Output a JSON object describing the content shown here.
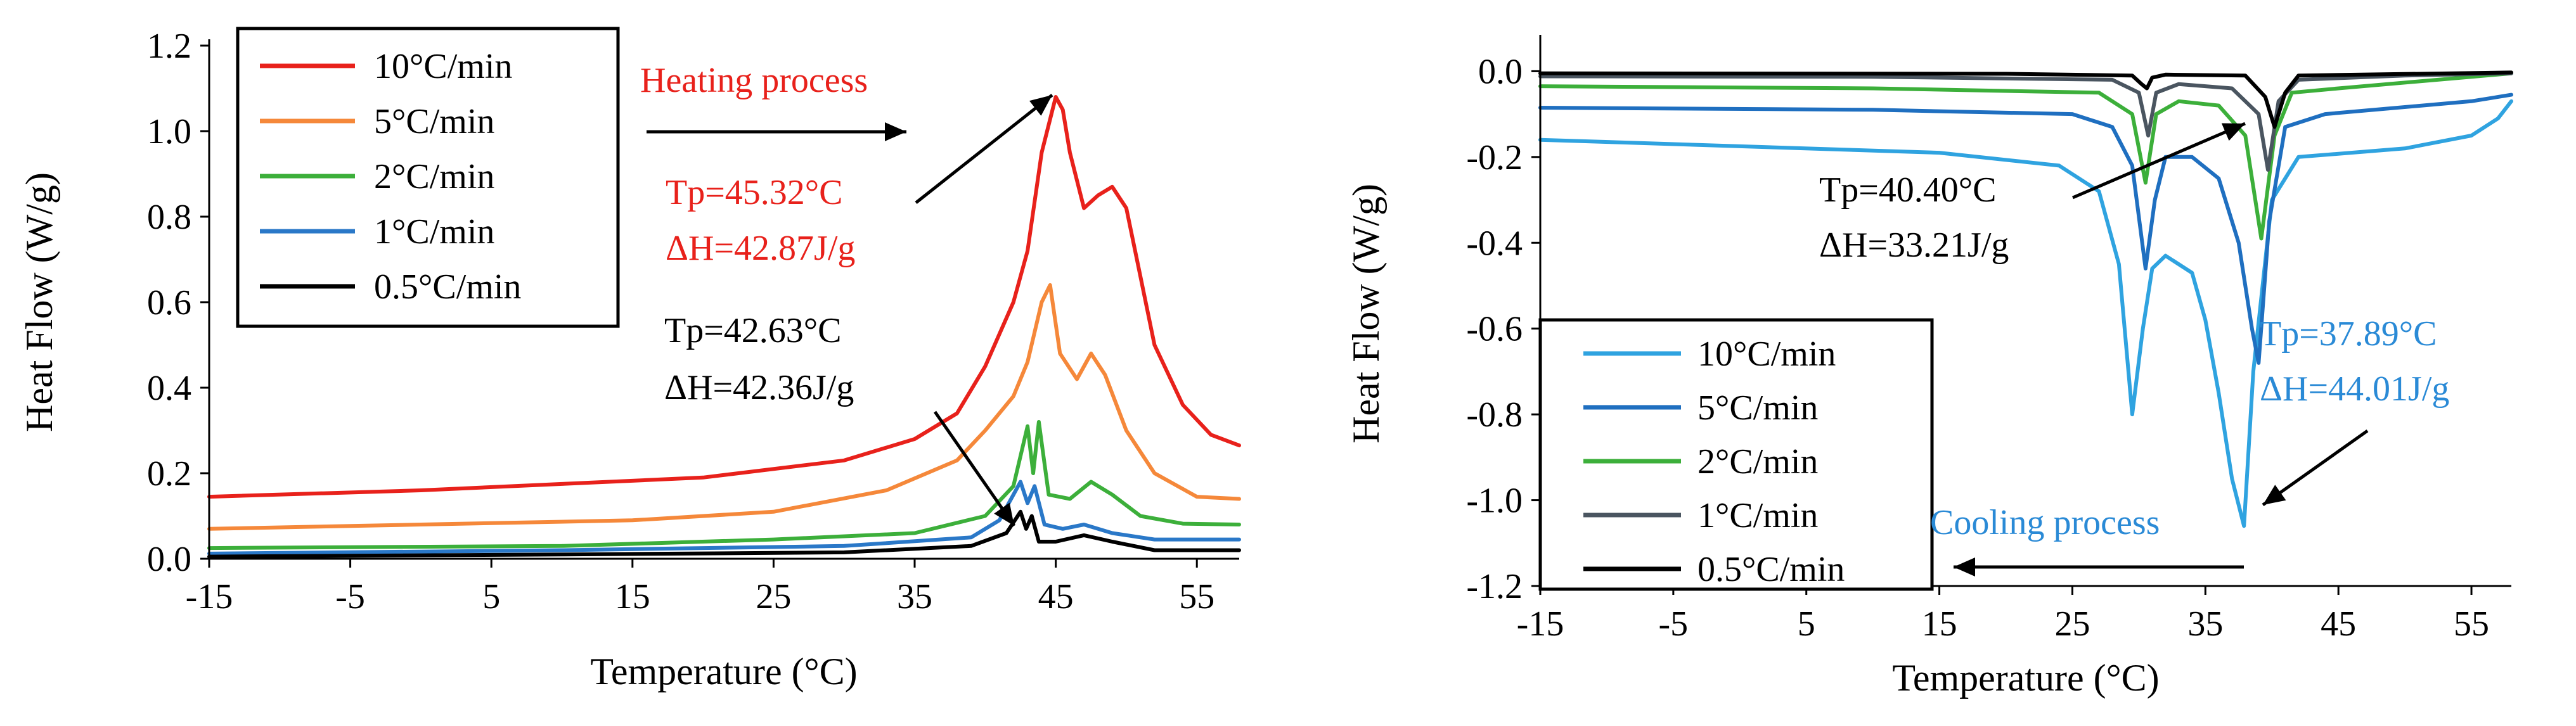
{
  "chart_data": [
    {
      "type": "line",
      "title": "",
      "xlabel": "Temperature (°C)",
      "ylabel": "Heat Flow (W/g)",
      "xlim": [
        -15,
        58
      ],
      "ylim": [
        0,
        1.2
      ],
      "xticks": [
        -15,
        -5,
        5,
        15,
        25,
        35,
        45,
        55
      ],
      "yticks": [
        0.0,
        0.2,
        0.4,
        0.6,
        0.8,
        1.0,
        1.2
      ],
      "ytick_labels": [
        "0.0",
        "0.2",
        "0.4",
        "0.6",
        "0.8",
        "1.0",
        "1.2"
      ],
      "legend": "top-left",
      "series": [
        {
          "name": "10°C/min",
          "color": "#e8211b",
          "points": [
            [
              -15,
              0.145
            ],
            [
              0,
              0.16
            ],
            [
              10,
              0.175
            ],
            [
              20,
              0.19
            ],
            [
              30,
              0.23
            ],
            [
              35,
              0.28
            ],
            [
              38,
              0.34
            ],
            [
              40,
              0.45
            ],
            [
              42,
              0.6
            ],
            [
              43,
              0.72
            ],
            [
              44,
              0.95
            ],
            [
              45,
              1.08
            ],
            [
              45.5,
              1.05
            ],
            [
              46,
              0.95
            ],
            [
              47,
              0.82
            ],
            [
              48,
              0.85
            ],
            [
              49,
              0.87
            ],
            [
              50,
              0.82
            ],
            [
              51,
              0.66
            ],
            [
              52,
              0.5
            ],
            [
              54,
              0.36
            ],
            [
              56,
              0.29
            ],
            [
              58,
              0.265
            ]
          ]
        },
        {
          "name": "5°C/min",
          "color": "#f5883a",
          "points": [
            [
              -15,
              0.07
            ],
            [
              0,
              0.08
            ],
            [
              15,
              0.09
            ],
            [
              25,
              0.11
            ],
            [
              33,
              0.16
            ],
            [
              38,
              0.23
            ],
            [
              40,
              0.3
            ],
            [
              42,
              0.38
            ],
            [
              43,
              0.46
            ],
            [
              44,
              0.6
            ],
            [
              44.6,
              0.64
            ],
            [
              45.3,
              0.48
            ],
            [
              46.5,
              0.42
            ],
            [
              47.5,
              0.48
            ],
            [
              48.5,
              0.43
            ],
            [
              50,
              0.3
            ],
            [
              52,
              0.2
            ],
            [
              55,
              0.145
            ],
            [
              58,
              0.14
            ]
          ]
        },
        {
          "name": "2°C/min",
          "color": "#3caf3a",
          "points": [
            [
              -15,
              0.025
            ],
            [
              10,
              0.03
            ],
            [
              25,
              0.045
            ],
            [
              35,
              0.06
            ],
            [
              40,
              0.1
            ],
            [
              42,
              0.17
            ],
            [
              43,
              0.31
            ],
            [
              43.4,
              0.2
            ],
            [
              43.8,
              0.32
            ],
            [
              44.5,
              0.15
            ],
            [
              46,
              0.14
            ],
            [
              47.5,
              0.18
            ],
            [
              49,
              0.15
            ],
            [
              51,
              0.1
            ],
            [
              54,
              0.082
            ],
            [
              58,
              0.08
            ]
          ]
        },
        {
          "name": "1°C/min",
          "color": "#2a78c8",
          "points": [
            [
              -15,
              0.012
            ],
            [
              10,
              0.02
            ],
            [
              30,
              0.03
            ],
            [
              39,
              0.05
            ],
            [
              41,
              0.09
            ],
            [
              42.5,
              0.18
            ],
            [
              43,
              0.13
            ],
            [
              43.5,
              0.17
            ],
            [
              44.2,
              0.08
            ],
            [
              45.5,
              0.07
            ],
            [
              47,
              0.08
            ],
            [
              49,
              0.06
            ],
            [
              52,
              0.045
            ],
            [
              58,
              0.045
            ]
          ]
        },
        {
          "name": "0.5°C/min",
          "color": "#000000",
          "points": [
            [
              -15,
              0.005
            ],
            [
              10,
              0.01
            ],
            [
              30,
              0.015
            ],
            [
              39,
              0.03
            ],
            [
              41.5,
              0.06
            ],
            [
              42.5,
              0.11
            ],
            [
              42.9,
              0.07
            ],
            [
              43.3,
              0.1
            ],
            [
              43.8,
              0.04
            ],
            [
              45,
              0.04
            ],
            [
              47,
              0.055
            ],
            [
              49,
              0.04
            ],
            [
              52,
              0.02
            ],
            [
              58,
              0.02
            ]
          ]
        }
      ],
      "annotations": [
        {
          "text": "Heating process",
          "color": "#e8211b"
        },
        {
          "text": "Tp=45.32°C",
          "color": "#e8211b"
        },
        {
          "text": "ΔH=42.87J/g",
          "color": "#e8211b"
        },
        {
          "text": "Tp=42.63°C",
          "color": "#000000"
        },
        {
          "text": "ΔH=42.36J/g",
          "color": "#000000"
        }
      ]
    },
    {
      "type": "line",
      "title": "",
      "xlabel": "Temperature (°C)",
      "ylabel": "Heat Flow (W/g)",
      "xlim": [
        -15,
        58
      ],
      "ylim": [
        -1.2,
        0.07
      ],
      "xticks": [
        -15,
        -5,
        5,
        15,
        25,
        35,
        45,
        55
      ],
      "yticks": [
        0.0,
        -0.2,
        -0.4,
        -0.6,
        -0.8,
        -1.0,
        -1.2
      ],
      "ytick_labels": [
        "0.0",
        "-0.2",
        "-0.4",
        "-0.6",
        "-0.8",
        "-1.0",
        "-1.2"
      ],
      "legend": "bottom-left",
      "series": [
        {
          "name": "10°C/min",
          "color": "#2fa3e0",
          "points": [
            [
              -15,
              -0.16
            ],
            [
              0,
              -0.175
            ],
            [
              15,
              -0.19
            ],
            [
              24,
              -0.22
            ],
            [
              27,
              -0.28
            ],
            [
              28.5,
              -0.45
            ],
            [
              29.5,
              -0.8
            ],
            [
              30.3,
              -0.6
            ],
            [
              31,
              -0.46
            ],
            [
              32,
              -0.43
            ],
            [
              34,
              -0.47
            ],
            [
              35,
              -0.58
            ],
            [
              36,
              -0.75
            ],
            [
              37,
              -0.95
            ],
            [
              37.9,
              -1.06
            ],
            [
              38.6,
              -0.7
            ],
            [
              40,
              -0.3
            ],
            [
              42,
              -0.2
            ],
            [
              50,
              -0.18
            ],
            [
              55,
              -0.15
            ],
            [
              57,
              -0.11
            ],
            [
              58,
              -0.07
            ]
          ]
        },
        {
          "name": "5°C/min",
          "color": "#1f6fc0",
          "points": [
            [
              -15,
              -0.085
            ],
            [
              10,
              -0.09
            ],
            [
              25,
              -0.1
            ],
            [
              28,
              -0.13
            ],
            [
              29.5,
              -0.22
            ],
            [
              30.5,
              -0.46
            ],
            [
              31.2,
              -0.3
            ],
            [
              32,
              -0.2
            ],
            [
              34,
              -0.2
            ],
            [
              36,
              -0.25
            ],
            [
              37.5,
              -0.4
            ],
            [
              38.5,
              -0.6
            ],
            [
              39,
              -0.68
            ],
            [
              39.8,
              -0.35
            ],
            [
              41,
              -0.13
            ],
            [
              44,
              -0.1
            ],
            [
              55,
              -0.07
            ],
            [
              58,
              -0.055
            ]
          ]
        },
        {
          "name": "2°C/min",
          "color": "#3caf3a",
          "points": [
            [
              -15,
              -0.035
            ],
            [
              10,
              -0.04
            ],
            [
              27,
              -0.05
            ],
            [
              29.5,
              -0.1
            ],
            [
              30.5,
              -0.26
            ],
            [
              31.3,
              -0.1
            ],
            [
              33,
              -0.07
            ],
            [
              36,
              -0.08
            ],
            [
              38,
              -0.15
            ],
            [
              39.2,
              -0.39
            ],
            [
              40.2,
              -0.15
            ],
            [
              41.5,
              -0.05
            ],
            [
              45,
              -0.04
            ],
            [
              58,
              -0.005
            ]
          ]
        },
        {
          "name": "1°C/min",
          "color": "#4a5560",
          "points": [
            [
              -15,
              -0.012
            ],
            [
              10,
              -0.013
            ],
            [
              28,
              -0.02
            ],
            [
              30,
              -0.05
            ],
            [
              30.7,
              -0.15
            ],
            [
              31.3,
              -0.05
            ],
            [
              33,
              -0.03
            ],
            [
              37,
              -0.04
            ],
            [
              39,
              -0.1
            ],
            [
              39.7,
              -0.23
            ],
            [
              40.5,
              -0.07
            ],
            [
              42,
              -0.02
            ],
            [
              50,
              -0.01
            ],
            [
              58,
              -0.005
            ]
          ]
        },
        {
          "name": "0.5°C/min",
          "color": "#000000",
          "points": [
            [
              -15,
              -0.005
            ],
            [
              20,
              -0.006
            ],
            [
              29.5,
              -0.01
            ],
            [
              30.2,
              -0.03
            ],
            [
              30.6,
              -0.04
            ],
            [
              31,
              -0.015
            ],
            [
              32,
              -0.008
            ],
            [
              38,
              -0.01
            ],
            [
              39.5,
              -0.06
            ],
            [
              40.2,
              -0.13
            ],
            [
              41,
              -0.05
            ],
            [
              42,
              -0.01
            ],
            [
              58,
              -0.003
            ]
          ]
        }
      ],
      "annotations": [
        {
          "text": "Tp=40.40°C",
          "color": "#000000"
        },
        {
          "text": "ΔH=33.21J/g",
          "color": "#000000"
        },
        {
          "text": "Tp=37.89°C",
          "color": "#2a8ad6"
        },
        {
          "text": "ΔH=44.01J/g",
          "color": "#2a8ad6"
        },
        {
          "text": "Cooling process",
          "color": "#2a8ad6"
        }
      ]
    }
  ]
}
